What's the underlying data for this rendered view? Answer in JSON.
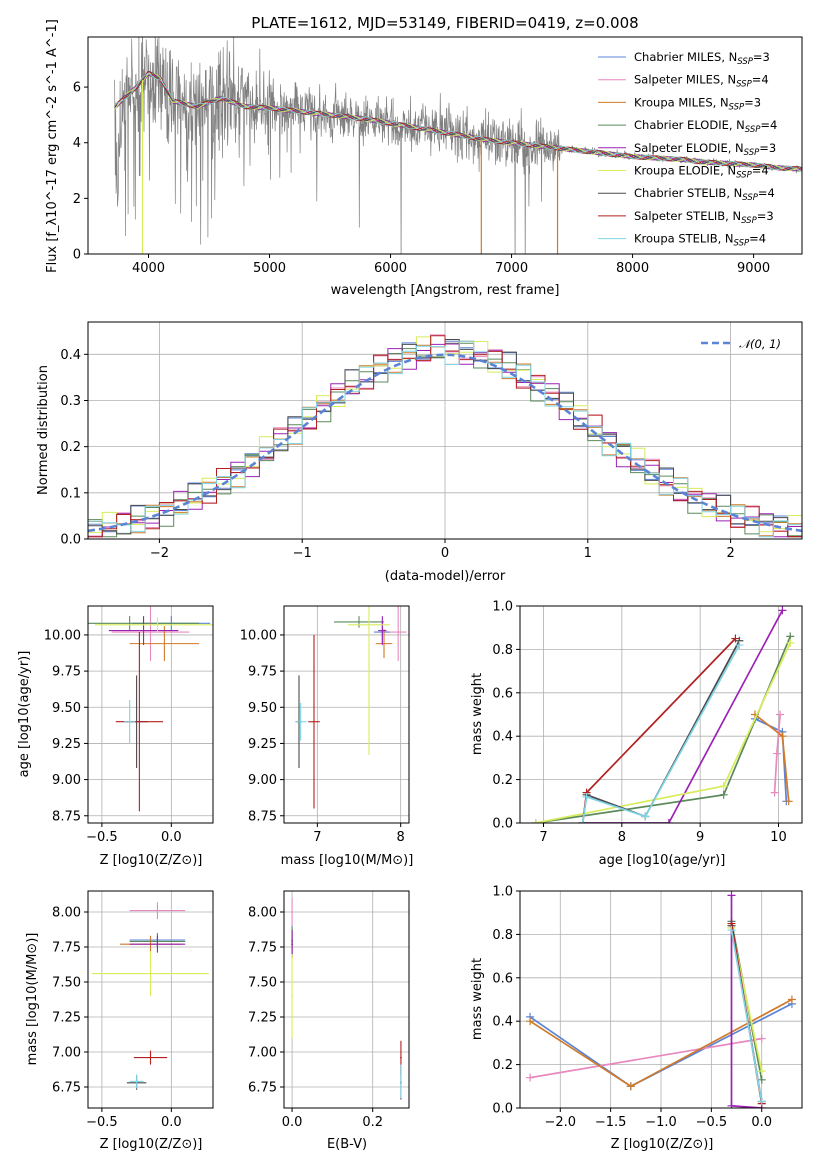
{
  "chart_data": [
    {
      "id": "spectrum",
      "type": "line",
      "title": "PLATE=1612, MJD=53149, FIBERID=0419, z=0.008",
      "xlabel": "wavelength [Angstrom, rest frame]",
      "ylabel": "Flux [f_λ10^-17 erg cm^-2 s^-1 A^-1]",
      "xlim": [
        3500,
        9400
      ],
      "ylim": [
        0,
        7.8
      ],
      "xticks": [
        4000,
        5000,
        6000,
        7000,
        8000,
        9000
      ],
      "yticks": [
        0,
        2,
        4,
        6
      ],
      "grid": false,
      "legend_position": "top-right",
      "continuum": {
        "x": [
          3750,
          3900,
          4000,
          4100,
          4200,
          4400,
          4600,
          4800,
          5000,
          5200,
          5400,
          5600,
          5800,
          6000,
          6200,
          6400,
          6600,
          6800,
          7000,
          7200,
          7400,
          7600,
          7800,
          8000,
          8200,
          8400,
          8600,
          8800,
          9000,
          9200,
          9400
        ],
        "y": [
          5.4,
          6.0,
          6.5,
          6.3,
          5.5,
          5.3,
          5.6,
          5.3,
          5.25,
          5.15,
          5.05,
          4.95,
          4.85,
          4.7,
          4.55,
          4.4,
          4.25,
          4.1,
          4.0,
          3.9,
          3.8,
          3.7,
          3.6,
          3.5,
          3.45,
          3.4,
          3.3,
          3.25,
          3.2,
          3.1,
          3.05
        ]
      },
      "dips": [
        {
          "x": 3950,
          "y": 0
        },
        {
          "x": 6750,
          "y": 0
        },
        {
          "x": 7380,
          "y": 0
        }
      ],
      "series": [
        {
          "name": "Chabrier MILES",
          "nssp": "3",
          "color": "#5b84d6"
        },
        {
          "name": "Salpeter MILES",
          "nssp": "4",
          "color": "#e889c0"
        },
        {
          "name": "Kroupa MILES",
          "nssp": "3",
          "color": "#d07a28"
        },
        {
          "name": "Chabrier ELODIE",
          "nssp": "4",
          "color": "#5a8a5a"
        },
        {
          "name": "Salpeter ELODIE",
          "nssp": "3",
          "color": "#9b22b5"
        },
        {
          "name": "Kroupa ELODIE",
          "nssp": "4",
          "color": "#d8ec5c"
        },
        {
          "name": "Chabrier STELIB",
          "nssp": "4",
          "color": "#4a4a4a"
        },
        {
          "name": "Salpeter STELIB",
          "nssp": "3",
          "color": "#b22020"
        },
        {
          "name": "Kroupa STELIB",
          "nssp": "4",
          "color": "#7fd4e6"
        }
      ]
    },
    {
      "id": "residuals",
      "type": "histogram",
      "xlabel": "(data-model)/error",
      "ylabel": "Normed distribution",
      "xlim": [
        -2.5,
        2.5
      ],
      "ylim": [
        0,
        0.47
      ],
      "xticks": [
        -2,
        -1,
        0,
        1,
        2
      ],
      "yticks": [
        0.0,
        0.1,
        0.2,
        0.3,
        0.4
      ],
      "grid": true,
      "legend": "𝒩(0, 1)",
      "legend_position": "top-right",
      "gaussian": {
        "mean": 0,
        "sigma": 1,
        "color": "#5b84d6"
      }
    },
    {
      "id": "age_vs_Z",
      "type": "errorbar",
      "xlabel": "Z [log10(Z/Z⊙)]",
      "ylabel": "age  [log10(age/yr)]",
      "xlim": [
        -0.6,
        0.3
      ],
      "ylim": [
        8.7,
        10.2
      ],
      "xticks": [
        -0.5,
        0.0
      ],
      "yticks": [
        8.75,
        9.0,
        9.25,
        9.5,
        9.75,
        10.0
      ],
      "points": [
        {
          "series": "Chabrier MILES",
          "x": 0.0,
          "y": 10.08,
          "xerr": 0.28,
          "yerr": 0.05
        },
        {
          "series": "Salpeter MILES",
          "x": -0.15,
          "y": 10.02,
          "xerr": 0.28,
          "yerr": 0.2
        },
        {
          "series": "Kroupa MILES",
          "x": -0.05,
          "y": 9.94,
          "xerr": 0.25,
          "yerr": 0.12
        },
        {
          "series": "Chabrier ELODIE",
          "x": -0.3,
          "y": 10.08,
          "xerr": 0.5,
          "yerr": 0.05
        },
        {
          "series": "Salpeter ELODIE",
          "x": -0.2,
          "y": 10.03,
          "xerr": 0.25,
          "yerr": 0.1
        },
        {
          "series": "Kroupa ELODIE",
          "x": -0.1,
          "y": 10.07,
          "xerr": 0.45,
          "yerr": 0.05
        },
        {
          "series": "Chabrier STELIB",
          "x": -0.25,
          "y": 9.4,
          "xerr": 0.08,
          "yerr": 0.32
        },
        {
          "series": "Salpeter STELIB",
          "x": -0.23,
          "y": 9.4,
          "xerr": 0.17,
          "yerr": 0.62
        },
        {
          "series": "Kroupa STELIB",
          "x": -0.3,
          "y": 9.4,
          "xerr": 0.04,
          "yerr": 0.15
        }
      ]
    },
    {
      "id": "age_vs_mass",
      "type": "errorbar",
      "xlabel": "mass [log10(M/M⊙)]",
      "xlim": [
        6.6,
        8.1
      ],
      "ylim": [
        8.7,
        10.2
      ],
      "xticks": [
        7,
        8
      ],
      "yticks": [
        8.75,
        9.0,
        9.25,
        9.5,
        9.75,
        10.0
      ],
      "points": [
        {
          "series": "Chabrier MILES",
          "x": 7.78,
          "y": 10.02,
          "xerr": 0.1,
          "yerr": 0.08
        },
        {
          "series": "Salpeter MILES",
          "x": 7.97,
          "y": 10.02,
          "xerr": 0.1,
          "yerr": 0.2
        },
        {
          "series": "Kroupa MILES",
          "x": 7.8,
          "y": 9.94,
          "xerr": 0.1,
          "yerr": 0.1
        },
        {
          "series": "Chabrier ELODIE",
          "x": 7.5,
          "y": 10.09,
          "xerr": 0.3,
          "yerr": 0.04
        },
        {
          "series": "Salpeter ELODIE",
          "x": 7.78,
          "y": 10.03,
          "xerr": 0.05,
          "yerr": 0.1
        },
        {
          "series": "Kroupa ELODIE",
          "x": 7.62,
          "y": 10.07,
          "xerr": 0.25,
          "yerr": 0.9
        },
        {
          "series": "Chabrier STELIB",
          "x": 6.78,
          "y": 9.4,
          "xerr": 0.03,
          "yerr": 0.32
        },
        {
          "series": "Salpeter STELIB",
          "x": 6.96,
          "y": 9.4,
          "xerr": 0.07,
          "yerr": 0.6
        },
        {
          "series": "Kroupa STELIB",
          "x": 6.8,
          "y": 9.4,
          "xerr": 0.07,
          "yerr": 0.13
        }
      ]
    },
    {
      "id": "weight_vs_age",
      "type": "line",
      "xlabel": "age  [log10(age/yr)]",
      "ylabel": "mass weight",
      "xlim": [
        6.7,
        10.3
      ],
      "ylim": [
        0,
        1
      ],
      "xticks": [
        7,
        8,
        9,
        10
      ],
      "yticks": [
        0.0,
        0.2,
        0.4,
        0.6,
        0.8,
        1.0
      ],
      "lines": [
        {
          "series": "Chabrier MILES",
          "x": [
            9.7,
            10.05,
            10.1
          ],
          "y": [
            0.48,
            0.42,
            0.1
          ]
        },
        {
          "series": "Salpeter MILES",
          "x": [
            9.95,
            9.98,
            10.02
          ],
          "y": [
            0.14,
            0.32,
            0.5
          ]
        },
        {
          "series": "Kroupa MILES",
          "x": [
            9.7,
            10.05,
            10.13
          ],
          "y": [
            0.5,
            0.4,
            0.1
          ]
        },
        {
          "series": "Chabrier ELODIE",
          "x": [
            6.9,
            9.3,
            10.15
          ],
          "y": [
            0.0,
            0.13,
            0.86
          ]
        },
        {
          "series": "Salpeter ELODIE",
          "x": [
            7.5,
            8.6,
            10.05
          ],
          "y": [
            0.0,
            0.0,
            0.98
          ]
        },
        {
          "series": "Kroupa ELODIE",
          "x": [
            6.9,
            9.3,
            10.15
          ],
          "y": [
            0.0,
            0.17,
            0.83
          ]
        },
        {
          "series": "Chabrier STELIB",
          "x": [
            7.5,
            7.55,
            8.3,
            9.5
          ],
          "y": [
            0.0,
            0.13,
            0.03,
            0.84
          ]
        },
        {
          "series": "Salpeter STELIB",
          "x": [
            7.5,
            7.55,
            9.45
          ],
          "y": [
            0.0,
            0.14,
            0.85
          ]
        },
        {
          "series": "Kroupa STELIB",
          "x": [
            7.5,
            7.55,
            8.3,
            9.5
          ],
          "y": [
            0.0,
            0.12,
            0.03,
            0.82
          ]
        }
      ]
    },
    {
      "id": "mass_vs_Z",
      "type": "errorbar",
      "xlabel": "Z [log10(Z/Z⊙)]",
      "ylabel": "mass [log10(M/M⊙)]",
      "xlim": [
        -0.6,
        0.3
      ],
      "ylim": [
        6.6,
        8.15
      ],
      "xticks": [
        -0.5,
        0.0
      ],
      "yticks": [
        6.75,
        7.0,
        7.25,
        7.5,
        7.75,
        8.0
      ],
      "points": [
        {
          "series": "Chabrier MILES",
          "x": -0.1,
          "y": 7.8,
          "xerr": 0.2,
          "yerr": 0.05
        },
        {
          "series": "Salpeter MILES",
          "x": -0.1,
          "y": 8.01,
          "xerr": 0.2,
          "yerr": 0.06
        },
        {
          "series": "Kroupa MILES",
          "x": -0.15,
          "y": 7.77,
          "xerr": 0.22,
          "yerr": 0.06
        },
        {
          "series": "Chabrier ELODIE",
          "x": -0.1,
          "y": 7.79,
          "xerr": 0.2,
          "yerr": 0.05
        },
        {
          "series": "Salpeter ELODIE",
          "x": -0.1,
          "y": 7.77,
          "xerr": 0.2,
          "yerr": 0.06
        },
        {
          "series": "Kroupa ELODIE",
          "x": -0.15,
          "y": 7.56,
          "xerr": 0.42,
          "yerr": 0.16
        },
        {
          "series": "Chabrier STELIB",
          "x": -0.25,
          "y": 6.78,
          "xerr": 0.07,
          "yerr": 0.05
        },
        {
          "series": "Salpeter STELIB",
          "x": -0.15,
          "y": 6.96,
          "xerr": 0.12,
          "yerr": 0.05
        },
        {
          "series": "Kroupa STELIB",
          "x": -0.25,
          "y": 6.79,
          "xerr": 0.05,
          "yerr": 0.05
        }
      ]
    },
    {
      "id": "mass_vs_ebv",
      "type": "errorbar",
      "xlabel": "E(B-V)",
      "xlim": [
        -0.02,
        0.29
      ],
      "ylim": [
        6.6,
        8.15
      ],
      "xticks": [
        0.0,
        0.2
      ],
      "yticks": [
        6.75,
        7.0,
        7.25,
        7.5,
        7.75,
        8.0
      ],
      "points": [
        {
          "series": "Chabrier MILES",
          "x": 0.0,
          "y": 7.8,
          "xerr": 0.002,
          "yerr": 0.1
        },
        {
          "series": "Salpeter MILES",
          "x": 0.0,
          "y": 8.0,
          "xerr": 0.002,
          "yerr": 0.1
        },
        {
          "series": "Kroupa MILES",
          "x": 0.0,
          "y": 7.77,
          "xerr": 0.002,
          "yerr": 0.1
        },
        {
          "series": "Chabrier ELODIE",
          "x": 0.0,
          "y": 7.79,
          "xerr": 0.002,
          "yerr": 0.1
        },
        {
          "series": "Salpeter ELODIE",
          "x": 0.0,
          "y": 7.77,
          "xerr": 0.002,
          "yerr": 0.1
        },
        {
          "series": "Kroupa ELODIE",
          "x": 0.0,
          "y": 7.4,
          "xerr": 0.002,
          "yerr": 0.3
        },
        {
          "series": "Chabrier STELIB",
          "x": 0.27,
          "y": 6.78,
          "xerr": 0.002,
          "yerr": 0.12
        },
        {
          "series": "Salpeter STELIB",
          "x": 0.27,
          "y": 6.96,
          "xerr": 0.002,
          "yerr": 0.12
        },
        {
          "series": "Kroupa STELIB",
          "x": 0.27,
          "y": 6.79,
          "xerr": 0.002,
          "yerr": 0.12
        }
      ]
    },
    {
      "id": "weight_vs_Z",
      "type": "line",
      "xlabel": "Z [log10(Z/Z⊙)]",
      "ylabel": "mass weight",
      "xlim": [
        -2.4,
        0.4
      ],
      "ylim": [
        0,
        1
      ],
      "xticks": [
        -2.0,
        -1.5,
        -1.0,
        -0.5,
        0.0
      ],
      "yticks": [
        0.0,
        0.2,
        0.4,
        0.6,
        0.8,
        1.0
      ],
      "lines": [
        {
          "series": "Chabrier MILES",
          "x": [
            -2.3,
            -1.3,
            0.3
          ],
          "y": [
            0.42,
            0.1,
            0.48
          ]
        },
        {
          "series": "Salpeter MILES",
          "x": [
            -2.3,
            0.0
          ],
          "y": [
            0.14,
            0.32
          ]
        },
        {
          "series": "Kroupa MILES",
          "x": [
            -2.3,
            -1.3,
            0.3
          ],
          "y": [
            0.4,
            0.1,
            0.5
          ]
        },
        {
          "series": "Chabrier ELODIE",
          "x": [
            -0.3,
            0.0
          ],
          "y": [
            0.86,
            0.13
          ]
        },
        {
          "series": "Salpeter ELODIE",
          "x": [
            -0.3,
            -0.3,
            0.0
          ],
          "y": [
            0.98,
            0.01,
            0.0
          ]
        },
        {
          "series": "Kroupa ELODIE",
          "x": [
            -0.3,
            0.0
          ],
          "y": [
            0.83,
            0.17
          ]
        },
        {
          "series": "Chabrier STELIB",
          "x": [
            -0.3,
            0.0
          ],
          "y": [
            0.84,
            0.03
          ]
        },
        {
          "series": "Salpeter STELIB",
          "x": [
            -0.3,
            0.0
          ],
          "y": [
            0.85,
            0.02
          ]
        },
        {
          "series": "Kroupa STELIB",
          "x": [
            -0.3,
            0.0
          ],
          "y": [
            0.82,
            0.03
          ]
        }
      ]
    }
  ]
}
